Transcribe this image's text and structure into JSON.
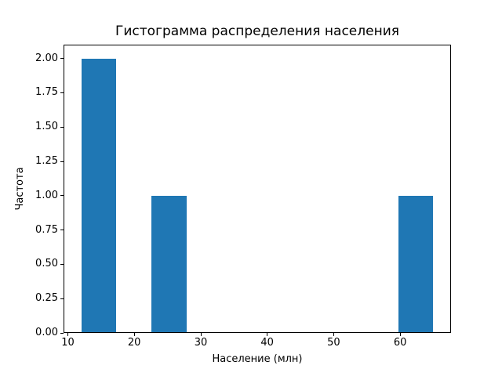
{
  "figure": {
    "background": "#ffffff",
    "text_color": "#000000"
  },
  "chart_data": {
    "type": "bar",
    "subtype": "histogram",
    "title": "Гистограмма распределения населения",
    "xlabel": "Население (млн)",
    "ylabel": "Частота",
    "xlim": [
      9.35,
      67.65
    ],
    "ylim": [
      0,
      2.1
    ],
    "xticks": [
      10,
      20,
      30,
      40,
      50,
      60
    ],
    "yticks": [
      0,
      0.25,
      0.5,
      0.75,
      1,
      1.25,
      1.5,
      1.75,
      2
    ],
    "ytick_decimals": 2,
    "grid": false,
    "legend": "none",
    "bar_color": "#1f77b4",
    "axis_color": "#000000",
    "bars": [
      {
        "x0": 12.0,
        "x1": 17.3,
        "frequency": 2
      },
      {
        "x0": 22.6,
        "x1": 27.9,
        "frequency": 1
      },
      {
        "x0": 59.7,
        "x1": 65.0,
        "frequency": 1
      }
    ]
  }
}
